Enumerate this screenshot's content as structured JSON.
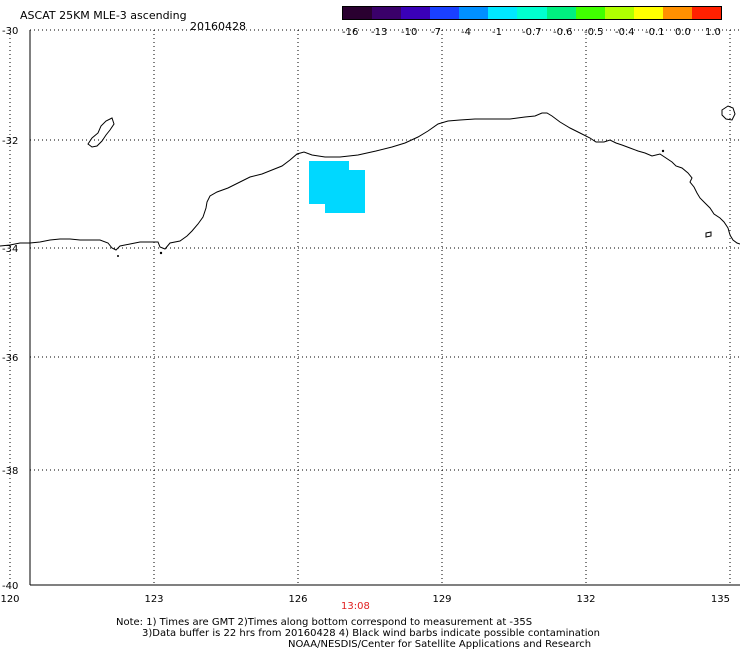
{
  "header": {
    "title": "ASCAT 25KM MLE-3 ascending",
    "date": "20160428"
  },
  "colorbar": {
    "colors": [
      "#2a0030",
      "#3a006a",
      "#3a00b8",
      "#1a40ff",
      "#0090ff",
      "#00e8ff",
      "#00ffd0",
      "#00f080",
      "#40ff00",
      "#b0ff00",
      "#ffff00",
      "#ff9000",
      "#ff2000"
    ],
    "labels": [
      "-16",
      "-13",
      "-10",
      "-7",
      "-4",
      "-1",
      "-0.7",
      "-0.6",
      "-0.5",
      "-0.4",
      "-0.1",
      "0.0",
      "1.0"
    ]
  },
  "map": {
    "lat_labels": [
      "-30",
      "-32",
      "-34",
      "-36",
      "-38",
      "-40"
    ],
    "lon_labels": [
      "120",
      "123",
      "126",
      "129",
      "132",
      "135"
    ],
    "data_color": "#00d8ff",
    "grid_style": "dotted"
  },
  "timestamp": "13:08",
  "notes": [
    "Note: 1) Times are GMT 2)Times along bottom correspond to measurement at -35S",
    "3)Data buffer is 22 hrs from 20160428 4) Black wind barbs indicate possible contamination",
    "NOAA/NESDIS/Center for Satellite Applications and Research"
  ]
}
